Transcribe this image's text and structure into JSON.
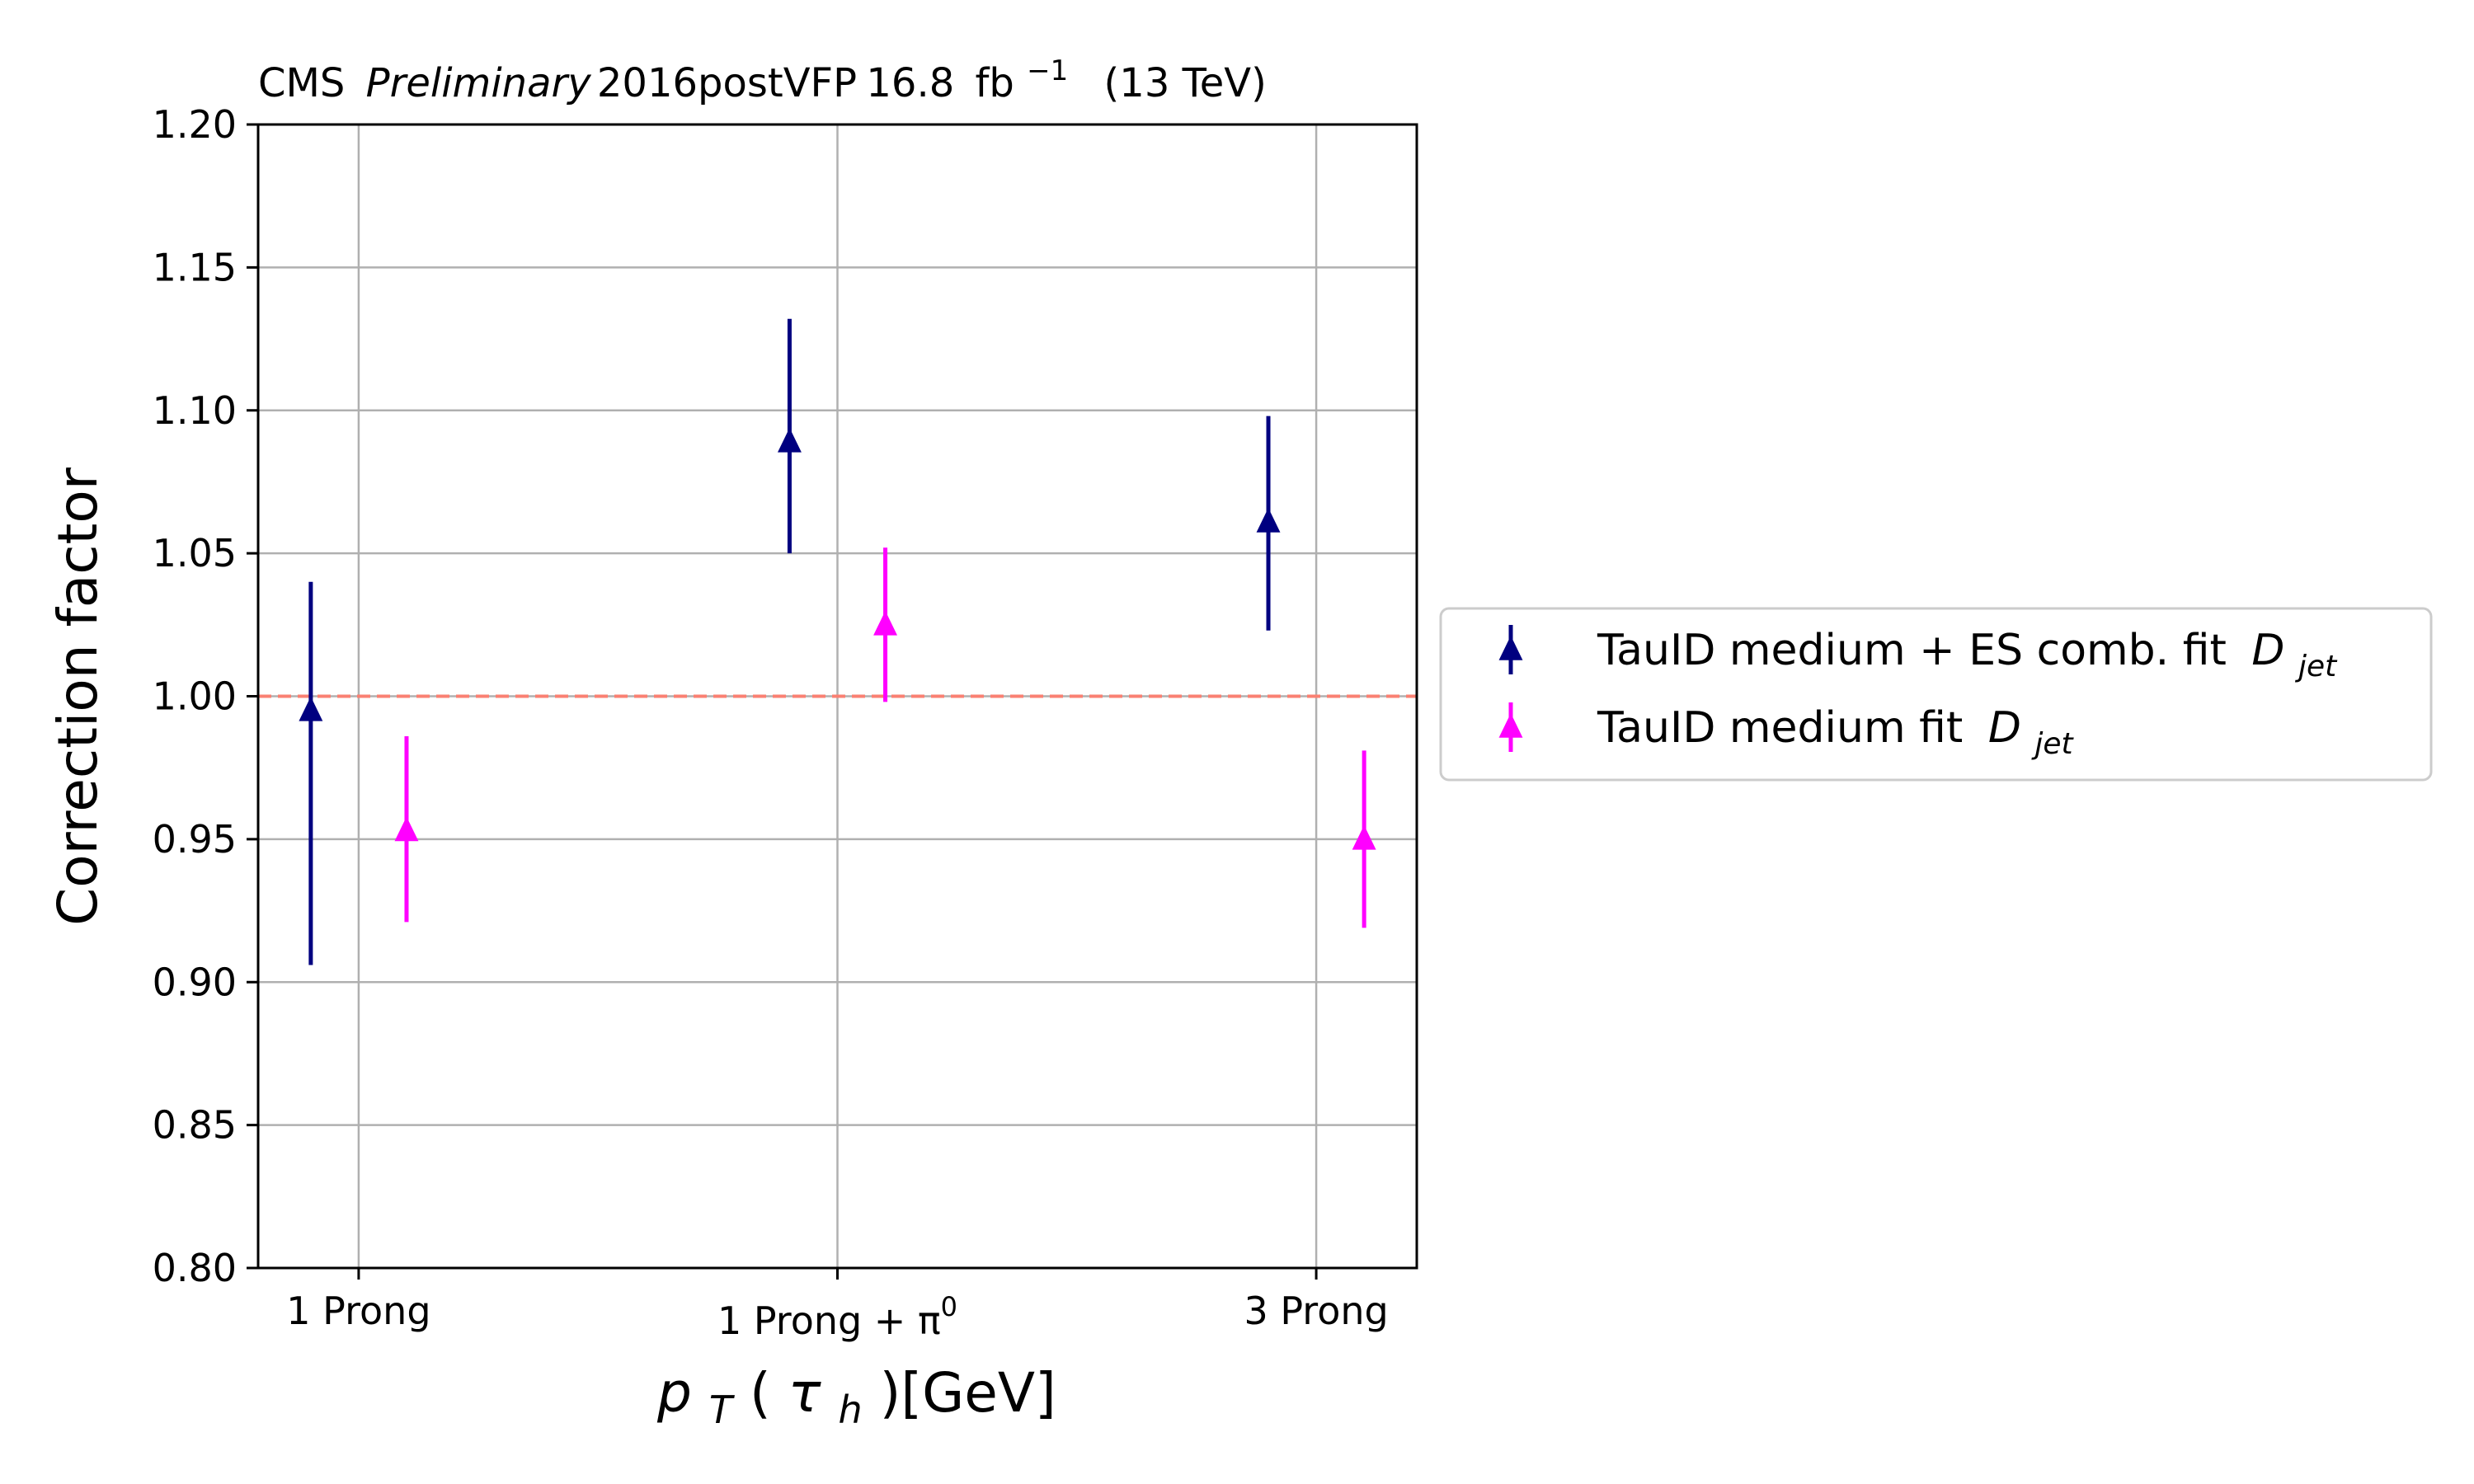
{
  "chart_data": {
    "type": "scatter",
    "title": {
      "experiment": "CMS",
      "status": "Preliminary",
      "era": "2016postVFP",
      "lumi_value": "16.8",
      "lumi_unit": "fb",
      "lumi_exp": "−1",
      "energy": "(13 TeV)"
    },
    "xlabel": {
      "main": "p",
      "sub": "T",
      "open": "(",
      "tau": "τ",
      "tau_sub": "h",
      "close": ")[GeV]"
    },
    "ylabel": "Correction factor",
    "categories": [
      {
        "main": "1 Prong",
        "sup": ""
      },
      {
        "main": "1 Prong + π",
        "sup": "0"
      },
      {
        "main": "3 Prong",
        "sup": ""
      }
    ],
    "xlim": [
      -0.21,
      2.21
    ],
    "ylim": [
      0.8,
      1.2
    ],
    "yticks": [
      "0.80",
      "0.85",
      "0.90",
      "0.95",
      "1.00",
      "1.05",
      "1.10",
      "1.15",
      "1.20"
    ],
    "reference_line": {
      "y": 1.0,
      "style": "dashed",
      "color": "#fa8072"
    },
    "grid": true,
    "legend_position": "outside-right",
    "series": [
      {
        "name": "TauID medium + ES comb. fit",
        "name_italic": "D",
        "name_sub": "jet",
        "color": "#000080",
        "marker": "triangle-up",
        "x": [
          -0.1,
          0.9,
          1.9
        ],
        "y": [
          0.995,
          1.089,
          1.061
        ],
        "y_low": [
          0.906,
          1.05,
          1.023
        ],
        "y_high": [
          1.04,
          1.132,
          1.098
        ]
      },
      {
        "name": "TauID medium fit",
        "name_italic": "D",
        "name_sub": "jet",
        "color": "#ff00ff",
        "marker": "triangle-up",
        "x": [
          0.1,
          1.1,
          2.1
        ],
        "y": [
          0.953,
          1.025,
          0.95
        ],
        "y_low": [
          0.921,
          0.998,
          0.919
        ],
        "y_high": [
          0.986,
          1.052,
          0.981
        ]
      }
    ]
  }
}
